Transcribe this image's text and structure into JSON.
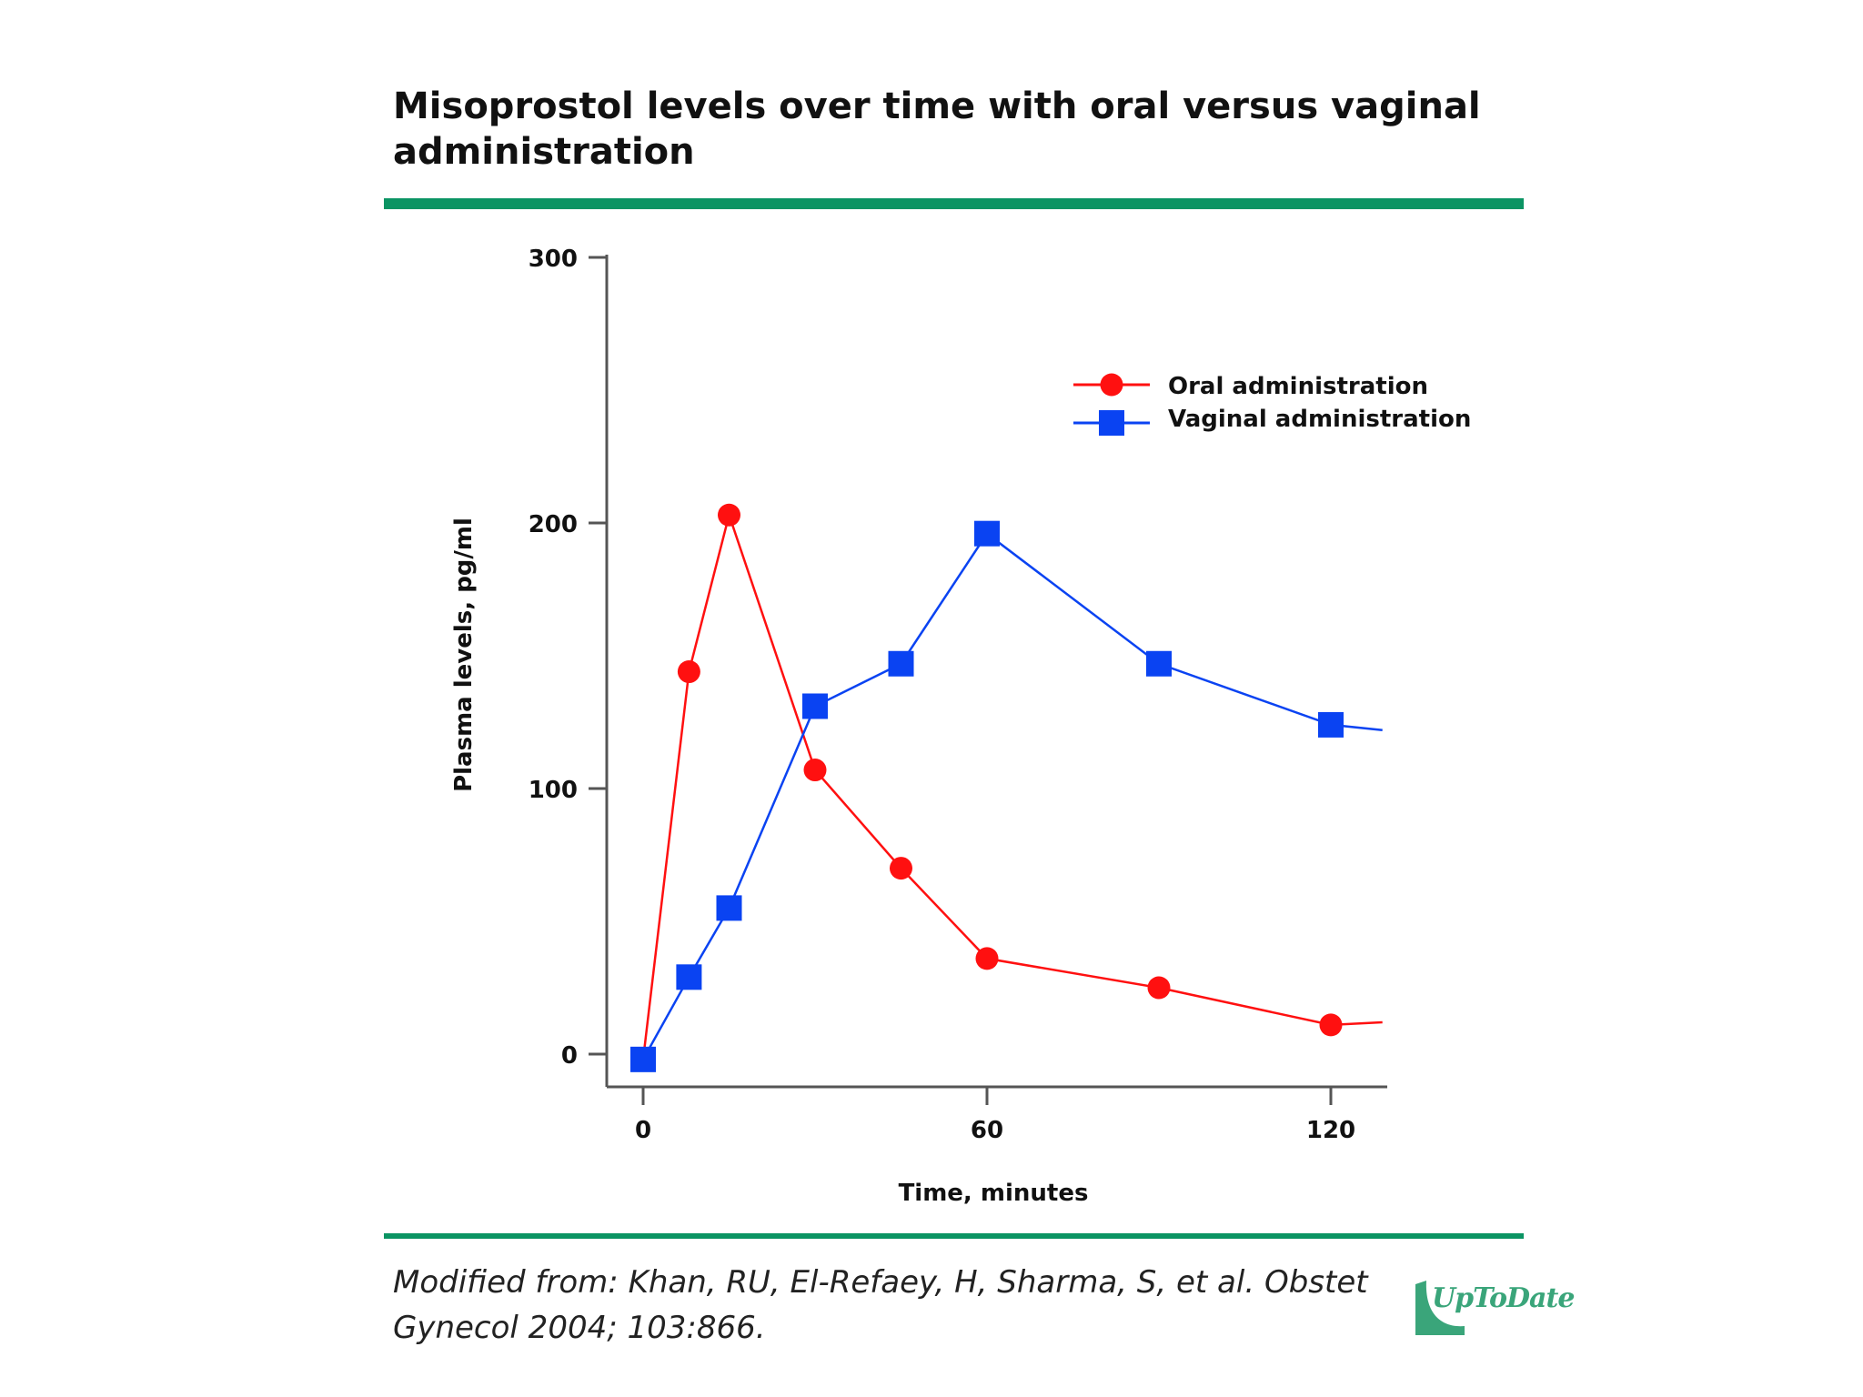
{
  "header": {
    "title": "Misoprostol levels over time with oral versus vaginal administration"
  },
  "footer": {
    "citation_line1": "Modified from: Khan, RU, El-Refaey, H, Sharma, S, et al. Obstet",
    "citation_line2": "Gynecol 2004; 103:866.",
    "logo_text": "UpToDate"
  },
  "colors": {
    "accent_rule": "#0b9463",
    "oral": "#ff1010",
    "vaginal": "#0a43f2"
  },
  "chart_data": {
    "type": "line",
    "title": "Misoprostol levels over time with oral versus vaginal administration",
    "xlabel": "Time, minutes",
    "ylabel": "Plasma levels, pg/ml",
    "xlim": [
      -5,
      130
    ],
    "ylim": [
      -12,
      300
    ],
    "xticks": [
      0,
      60,
      120
    ],
    "yticks": [
      0,
      100,
      200,
      300
    ],
    "legend_position": "top-right",
    "series": [
      {
        "name": "Oral administration",
        "marker": "circle",
        "color": "#ff1010",
        "x": [
          0,
          8,
          15,
          30,
          45,
          60,
          90,
          120
        ],
        "y": [
          -2,
          144,
          203,
          107,
          70,
          36,
          25,
          11
        ],
        "tail": {
          "x": 129,
          "y": 12
        }
      },
      {
        "name": "Vaginal administration",
        "marker": "square",
        "color": "#0a43f2",
        "x": [
          0,
          8,
          15,
          30,
          45,
          60,
          90,
          120
        ],
        "y": [
          -2,
          29,
          55,
          131,
          147,
          196,
          147,
          124
        ],
        "tail": {
          "x": 129,
          "y": 122
        }
      }
    ]
  }
}
